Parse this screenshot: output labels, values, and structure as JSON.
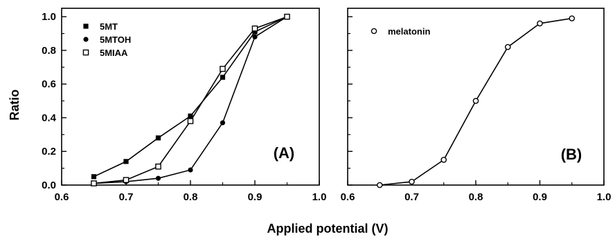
{
  "shared": {
    "ylabel": "Ratio",
    "xlabel": "Applied potential (V)"
  },
  "chart_data": [
    {
      "type": "line",
      "panel_label": "(A)",
      "xlim": [
        0.6,
        1.0
      ],
      "ylim": [
        0.0,
        1.05
      ],
      "x_ticks": [
        "0.6",
        "0.7",
        "0.8",
        "0.9",
        "1.0"
      ],
      "y_ticks": [
        "0.0",
        "0.2",
        "0.4",
        "0.6",
        "0.8",
        "1.0"
      ],
      "x": [
        0.65,
        0.7,
        0.75,
        0.8,
        0.85,
        0.9,
        0.95
      ],
      "legend_position": "top-left",
      "series": [
        {
          "name": "5MT",
          "marker": "filled-square",
          "values": [
            0.05,
            0.14,
            0.28,
            0.41,
            0.64,
            0.91,
            1.0
          ]
        },
        {
          "name": "5MTOH",
          "marker": "filled-circle",
          "values": [
            0.01,
            0.02,
            0.04,
            0.09,
            0.37,
            0.88,
            1.0
          ]
        },
        {
          "name": "5MIAA",
          "marker": "open-square",
          "values": [
            0.01,
            0.03,
            0.11,
            0.38,
            0.69,
            0.93,
            1.0
          ]
        }
      ]
    },
    {
      "type": "line",
      "panel_label": "(B)",
      "xlim": [
        0.6,
        1.0
      ],
      "ylim": [
        0.0,
        1.05
      ],
      "x_ticks": [
        "0.6",
        "0.7",
        "0.8",
        "0.9",
        "1.0"
      ],
      "x": [
        0.65,
        0.7,
        0.75,
        0.8,
        0.85,
        0.9,
        0.95
      ],
      "legend_position": "top-left",
      "series": [
        {
          "name": "melatonin",
          "marker": "open-circle",
          "values": [
            0.0,
            0.02,
            0.15,
            0.5,
            0.82,
            0.96,
            0.99
          ]
        }
      ]
    }
  ]
}
